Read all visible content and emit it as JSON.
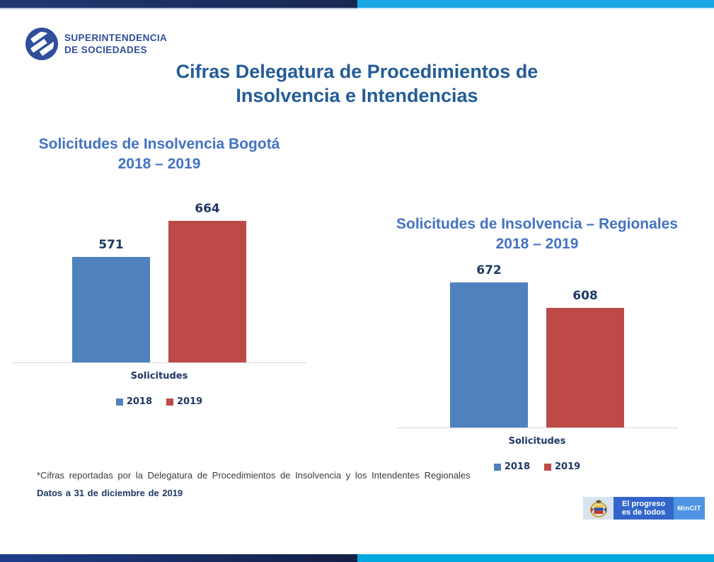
{
  "header": {
    "logo_line1": "SUPERINTENDENCIA",
    "logo_line2": "DE SOCIEDADES",
    "title_line1": "Cifras Delegatura de Procedimientos de",
    "title_line2": "Insolvencia e Intendencias"
  },
  "chart_data": [
    {
      "type": "bar",
      "title": "Solicitudes de Insolvencia Bogotá",
      "subtitle": "2018 – 2019",
      "categories": [
        "Solicitudes"
      ],
      "series": [
        {
          "name": "2018",
          "color": "#4E81BD",
          "values": [
            571
          ]
        },
        {
          "name": "2019",
          "color": "#BE4A47",
          "values": [
            664
          ]
        }
      ],
      "xlabel": "Solicitudes",
      "ylabel": "",
      "ylim": [
        300,
        700
      ],
      "grid": false,
      "legend_position": "bottom",
      "data_labels": true
    },
    {
      "type": "bar",
      "title": "Solicitudes de Insolvencia – Regionales",
      "subtitle": "2018 – 2019",
      "categories": [
        "Solicitudes"
      ],
      "series": [
        {
          "name": "2018",
          "color": "#4E81BD",
          "values": [
            672
          ]
        },
        {
          "name": "2019",
          "color": "#BE4A47",
          "values": [
            608
          ]
        }
      ],
      "xlabel": "Solicitudes",
      "ylabel": "",
      "ylim": [
        300,
        700
      ],
      "grid": false,
      "legend_position": "bottom",
      "data_labels": true
    }
  ],
  "footnotes": {
    "note1": "*Cifras reportadas por la Delegatura de Procedimientos de Insolvencia y los Intendentes Regionales",
    "note2": "Datos a 31 de diciembre de 2019"
  },
  "footer_badge": {
    "slogan_line1": "El progreso",
    "slogan_line2": "es de todos",
    "ministry": "MinCIT"
  },
  "colors": {
    "bar_2018": "#4E81BD",
    "bar_2019": "#BE4A47",
    "main_title": "#235C97",
    "chart_title": "#4472C4",
    "label_navy": "#1F3864",
    "top_bar_navy": "#1B2F63",
    "top_bar_cyan": "#1AA9E4",
    "bottom_bar_cyan": "#00A7E0",
    "badge_blue": "#3366CB",
    "badge_light_blue": "#4F94E3"
  }
}
